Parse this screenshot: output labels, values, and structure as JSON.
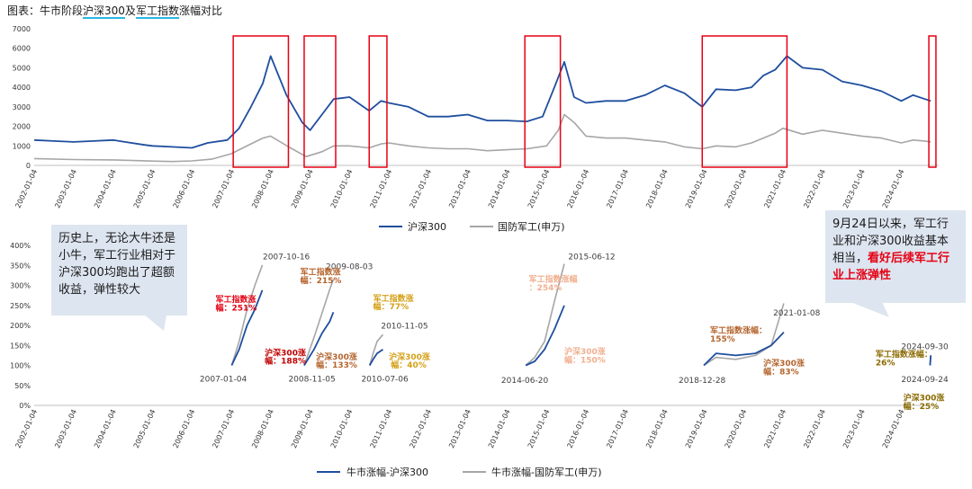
{
  "title_prefix": "图表：牛市阶段",
  "title_hl1": "沪深300",
  "title_mid": "及",
  "title_hl2": "军工指数",
  "title_suffix": "涨幅对比",
  "callout_left": "历史上，无论大牛还是小牛，军工行业相对于沪深300均跑出了超额收益，弹性较大",
  "callout_right_normal": "9月24日以来，军工行业和沪深300收益基本相当，",
  "callout_right_red": "看好后续军工行业上涨弹性",
  "colors": {
    "hs300": "#1f4e9e",
    "military": "#a6a6a6",
    "box": "#e60012",
    "callout_bg": "#dde5f0"
  },
  "chart_data": [
    {
      "type": "line",
      "title": "",
      "ylim": [
        0,
        7000
      ],
      "yticks": [
        0,
        1000,
        2000,
        3000,
        4000,
        5000,
        6000,
        7000
      ],
      "xticks": [
        "2002-01-04",
        "2003-01-04",
        "2004-01-04",
        "2005-01-04",
        "2006-01-04",
        "2007-01-04",
        "2008-01-04",
        "2009-01-04",
        "2010-01-04",
        "2011-01-04",
        "2012-01-04",
        "2013-01-04",
        "2014-01-04",
        "2015-01-04",
        "2016-01-04",
        "2017-01-04",
        "2018-01-04",
        "2019-01-04",
        "2020-01-04",
        "2021-01-04",
        "2022-01-04",
        "2023-01-04",
        "2024-01-04"
      ],
      "legend": [
        "沪深300",
        "国防军工(申万)"
      ],
      "series": [
        {
          "name": "沪深300",
          "x": [
            2002.0,
            2002.5,
            2003.0,
            2003.5,
            2004.0,
            2004.3,
            2004.8,
            2005.0,
            2005.5,
            2006.0,
            2006.4,
            2006.9,
            2007.2,
            2007.5,
            2007.8,
            2008.0,
            2008.4,
            2008.8,
            2009.0,
            2009.3,
            2009.6,
            2010.0,
            2010.5,
            2010.8,
            2011.0,
            2011.5,
            2012.0,
            2012.5,
            2013.0,
            2013.5,
            2014.0,
            2014.5,
            2014.9,
            2015.2,
            2015.45,
            2015.7,
            2016.0,
            2016.5,
            2017.0,
            2017.5,
            2018.0,
            2018.5,
            2018.95,
            2019.3,
            2019.8,
            2020.2,
            2020.5,
            2020.8,
            2021.1,
            2021.5,
            2022.0,
            2022.5,
            2023.0,
            2023.5,
            2024.0,
            2024.3,
            2024.6,
            2024.75
          ],
          "y": [
            1300,
            1250,
            1200,
            1250,
            1300,
            1200,
            1050,
            1000,
            950,
            900,
            1150,
            1300,
            1900,
            3000,
            4200,
            5600,
            3600,
            2200,
            1800,
            2600,
            3400,
            3500,
            2800,
            3300,
            3200,
            3000,
            2500,
            2500,
            2600,
            2300,
            2300,
            2250,
            2500,
            4000,
            5300,
            3500,
            3200,
            3300,
            3300,
            3600,
            4100,
            3700,
            3000,
            3900,
            3850,
            4000,
            4600,
            4900,
            5600,
            5000,
            4900,
            4300,
            4100,
            3800,
            3300,
            3600,
            3400,
            3300
          ]
        },
        {
          "name": "国防军工(申万)",
          "x": [
            2002.0,
            2003.0,
            2004.0,
            2005.0,
            2005.5,
            2006.0,
            2006.5,
            2007.0,
            2007.5,
            2007.8,
            2008.0,
            2008.5,
            2008.9,
            2009.3,
            2009.6,
            2010.0,
            2010.5,
            2010.8,
            2011.0,
            2011.5,
            2012.0,
            2012.5,
            2013.0,
            2013.5,
            2014.0,
            2014.5,
            2015.0,
            2015.3,
            2015.45,
            2015.7,
            2016.0,
            2016.5,
            2017.0,
            2017.5,
            2018.0,
            2018.5,
            2018.95,
            2019.3,
            2019.8,
            2020.2,
            2020.5,
            2020.8,
            2021.0,
            2021.5,
            2022.0,
            2022.5,
            2023.0,
            2023.5,
            2024.0,
            2024.3,
            2024.6,
            2024.75
          ],
          "y": [
            350,
            300,
            280,
            220,
            200,
            230,
            320,
            600,
            1100,
            1400,
            1500,
            900,
            450,
            700,
            1000,
            1000,
            900,
            1100,
            1150,
            1000,
            900,
            850,
            850,
            750,
            800,
            850,
            1000,
            1800,
            2600,
            2200,
            1500,
            1400,
            1400,
            1300,
            1200,
            950,
            850,
            1000,
            950,
            1150,
            1400,
            1650,
            1900,
            1600,
            1800,
            1650,
            1500,
            1400,
            1150,
            1300,
            1250,
            1200
          ]
        }
      ],
      "highlight_boxes": [
        [
          2007.05,
          2008.45
        ],
        [
          2008.85,
          2009.65
        ],
        [
          2010.5,
          2010.95
        ],
        [
          2014.45,
          2015.35
        ],
        [
          2018.95,
          2021.1
        ],
        [
          2024.7,
          2024.88
        ]
      ]
    },
    {
      "type": "line",
      "title": "",
      "ylim": [
        0,
        400
      ],
      "yticks": [
        "0%",
        "50%",
        "100%",
        "150%",
        "200%",
        "250%",
        "300%",
        "350%",
        "400%"
      ],
      "xticks": [
        "2002-01-04",
        "2003-01-04",
        "2004-01-04",
        "2005-01-04",
        "2006-01-04",
        "2007-01-04",
        "2008-01-04",
        "2009-01-04",
        "2010-01-04",
        "2011-01-04",
        "2012-01-04",
        "2013-01-04",
        "2014-01-04",
        "2015-01-04",
        "2016-01-04",
        "2017-01-04",
        "2018-01-04",
        "2019-01-04",
        "2020-01-04",
        "2021-01-04",
        "2022-01-04",
        "2023-01-04",
        "2024-01-04"
      ],
      "legend": [
        "牛市涨幅-沪深300",
        "牛市涨幅-国防军工(申万)"
      ],
      "segments": [
        {
          "hs300": {
            "x": [
              2007.01,
              2007.2,
              2007.4,
              2007.6,
              2007.79
            ],
            "y": [
              100,
              140,
              200,
              240,
              288
            ]
          },
          "military": {
            "x": [
              2007.01,
              2007.2,
              2007.4,
              2007.6,
              2007.79
            ],
            "y": [
              100,
              160,
              240,
              300,
              351
            ]
          }
        },
        {
          "hs300": {
            "x": [
              2008.85,
              2009.1,
              2009.3,
              2009.5,
              2009.59
            ],
            "y": [
              100,
              140,
              180,
              210,
              233
            ]
          },
          "military": {
            "x": [
              2008.85,
              2009.1,
              2009.3,
              2009.5,
              2009.59
            ],
            "y": [
              100,
              170,
              230,
              290,
              315
            ]
          }
        },
        {
          "hs300": {
            "x": [
              2010.51,
              2010.6,
              2010.7,
              2010.85
            ],
            "y": [
              100,
              115,
              130,
              140
            ]
          },
          "military": {
            "x": [
              2010.51,
              2010.6,
              2010.7,
              2010.85
            ],
            "y": [
              100,
              130,
              160,
              177
            ]
          }
        },
        {
          "hs300": {
            "x": [
              2014.47,
              2014.7,
              2014.95,
              2015.2,
              2015.45
            ],
            "y": [
              100,
              110,
              140,
              190,
              250
            ]
          },
          "military": {
            "x": [
              2014.47,
              2014.7,
              2014.95,
              2015.2,
              2015.45
            ],
            "y": [
              100,
              120,
              160,
              260,
              354
            ]
          }
        },
        {
          "hs300": {
            "x": [
              2018.99,
              2019.3,
              2019.8,
              2020.3,
              2020.7,
              2021.02
            ],
            "y": [
              100,
              130,
              125,
              130,
              150,
              183
            ]
          },
          "military": {
            "x": [
              2018.99,
              2019.3,
              2019.8,
              2020.3,
              2020.7,
              2021.02
            ],
            "y": [
              100,
              120,
              115,
              125,
              150,
              255
            ]
          }
        },
        {
          "hs300": {
            "x": [
              2024.73,
              2024.75
            ],
            "y": [
              100,
              125
            ]
          },
          "military": {
            "x": [
              2024.73,
              2024.75
            ],
            "y": [
              100,
              126
            ]
          }
        }
      ],
      "annotations": [
        {
          "text": "2007-10-16",
          "x": 2007.8,
          "y": 365,
          "color": "#404040",
          "align": "left",
          "bold": false
        },
        {
          "text": "军工指数涨",
          "x": 2006.6,
          "y": 258,
          "color": "#e60012",
          "align": "left",
          "bold": true
        },
        {
          "text": "幅：251%",
          "x": 2006.6,
          "y": 237,
          "color": "#e60012",
          "align": "left",
          "bold": true
        },
        {
          "text": "沪深300涨",
          "x": 2007.85,
          "y": 125,
          "color": "#c00000",
          "align": "left",
          "bold": true
        },
        {
          "text": "幅：188%",
          "x": 2007.85,
          "y": 104,
          "color": "#c00000",
          "align": "left",
          "bold": true
        },
        {
          "text": "2007-01-04",
          "x": 2006.2,
          "y": 60,
          "color": "#404040",
          "align": "left",
          "bold": false
        },
        {
          "text": "2009-08-03",
          "x": 2009.4,
          "y": 340,
          "color": "#404040",
          "align": "left",
          "bold": false
        },
        {
          "text": "军工指数涨",
          "x": 2008.75,
          "y": 327,
          "color": "#b4652e",
          "align": "left",
          "bold": true
        },
        {
          "text": "幅：215%",
          "x": 2008.75,
          "y": 306,
          "color": "#b4652e",
          "align": "left",
          "bold": true
        },
        {
          "text": "沪深300涨",
          "x": 2009.15,
          "y": 115,
          "color": "#b4652e",
          "align": "left",
          "bold": true
        },
        {
          "text": "幅：133%",
          "x": 2009.15,
          "y": 94,
          "color": "#b4652e",
          "align": "left",
          "bold": true
        },
        {
          "text": "2008-11-05",
          "x": 2008.45,
          "y": 60,
          "color": "#404040",
          "align": "left",
          "bold": false
        },
        {
          "text": "军工指数涨",
          "x": 2010.6,
          "y": 261,
          "color": "#d4a017",
          "align": "left",
          "bold": true
        },
        {
          "text": "幅：77%",
          "x": 2010.6,
          "y": 240,
          "color": "#d4a017",
          "align": "left",
          "bold": true
        },
        {
          "text": "2010-11-05",
          "x": 2010.8,
          "y": 192,
          "color": "#404040",
          "align": "left",
          "bold": false
        },
        {
          "text": "沪深300涨",
          "x": 2011.0,
          "y": 115,
          "color": "#d4a017",
          "align": "left",
          "bold": true
        },
        {
          "text": "幅：40%",
          "x": 2011.05,
          "y": 94,
          "color": "#d4a017",
          "align": "left",
          "bold": true
        },
        {
          "text": "2010-07-06",
          "x": 2010.3,
          "y": 60,
          "color": "#404040",
          "align": "left",
          "bold": false
        },
        {
          "text": "2015-06-12",
          "x": 2015.55,
          "y": 365,
          "color": "#404040",
          "align": "left",
          "bold": false
        },
        {
          "text": "军工指数涨幅",
          "x": 2014.55,
          "y": 309,
          "color": "#f0b090",
          "align": "left",
          "bold": true
        },
        {
          "text": "：254%",
          "x": 2014.55,
          "y": 288,
          "color": "#f0b090",
          "align": "left",
          "bold": true
        },
        {
          "text": "沪深300涨",
          "x": 2015.45,
          "y": 128,
          "color": "#f0b090",
          "align": "left",
          "bold": true
        },
        {
          "text": "幅：150%",
          "x": 2015.45,
          "y": 107,
          "color": "#f0b090",
          "align": "left",
          "bold": true
        },
        {
          "text": "2014-06-20",
          "x": 2013.85,
          "y": 56,
          "color": "#404040",
          "align": "left",
          "bold": false
        },
        {
          "text": "2021-01-08",
          "x": 2020.75,
          "y": 225,
          "color": "#404040",
          "align": "left",
          "bold": false
        },
        {
          "text": "军工指数涨幅：",
          "x": 2019.15,
          "y": 181,
          "color": "#b4652e",
          "align": "left",
          "bold": true
        },
        {
          "text": "155%",
          "x": 2019.15,
          "y": 160,
          "color": "#b4652e",
          "align": "left",
          "bold": true
        },
        {
          "text": "沪深300涨",
          "x": 2020.5,
          "y": 99,
          "color": "#b4652e",
          "align": "left",
          "bold": true
        },
        {
          "text": "幅：83%",
          "x": 2020.5,
          "y": 78,
          "color": "#b4652e",
          "align": "left",
          "bold": true
        },
        {
          "text": "2018-12-28",
          "x": 2018.35,
          "y": 56,
          "color": "#404040",
          "align": "left",
          "bold": false
        },
        {
          "text": "2024-09-30",
          "x": 2024.0,
          "y": 141,
          "color": "#404040",
          "align": "left",
          "bold": false
        },
        {
          "text": "军工指数涨幅：",
          "x": 2023.35,
          "y": 121,
          "color": "#8a6a00",
          "align": "left",
          "bold": true
        },
        {
          "text": "26%",
          "x": 2023.35,
          "y": 100,
          "color": "#8a6a00",
          "align": "left",
          "bold": true
        },
        {
          "text": "2024-09-24",
          "x": 2024.0,
          "y": 58,
          "color": "#404040",
          "align": "left",
          "bold": false
        },
        {
          "text": "沪深300涨",
          "x": 2024.05,
          "y": 12,
          "color": "#8a6a00",
          "align": "left",
          "bold": true
        },
        {
          "text": "幅：25%",
          "x": 2024.05,
          "y": -9,
          "color": "#8a6a00",
          "align": "left",
          "bold": true
        }
      ]
    }
  ]
}
